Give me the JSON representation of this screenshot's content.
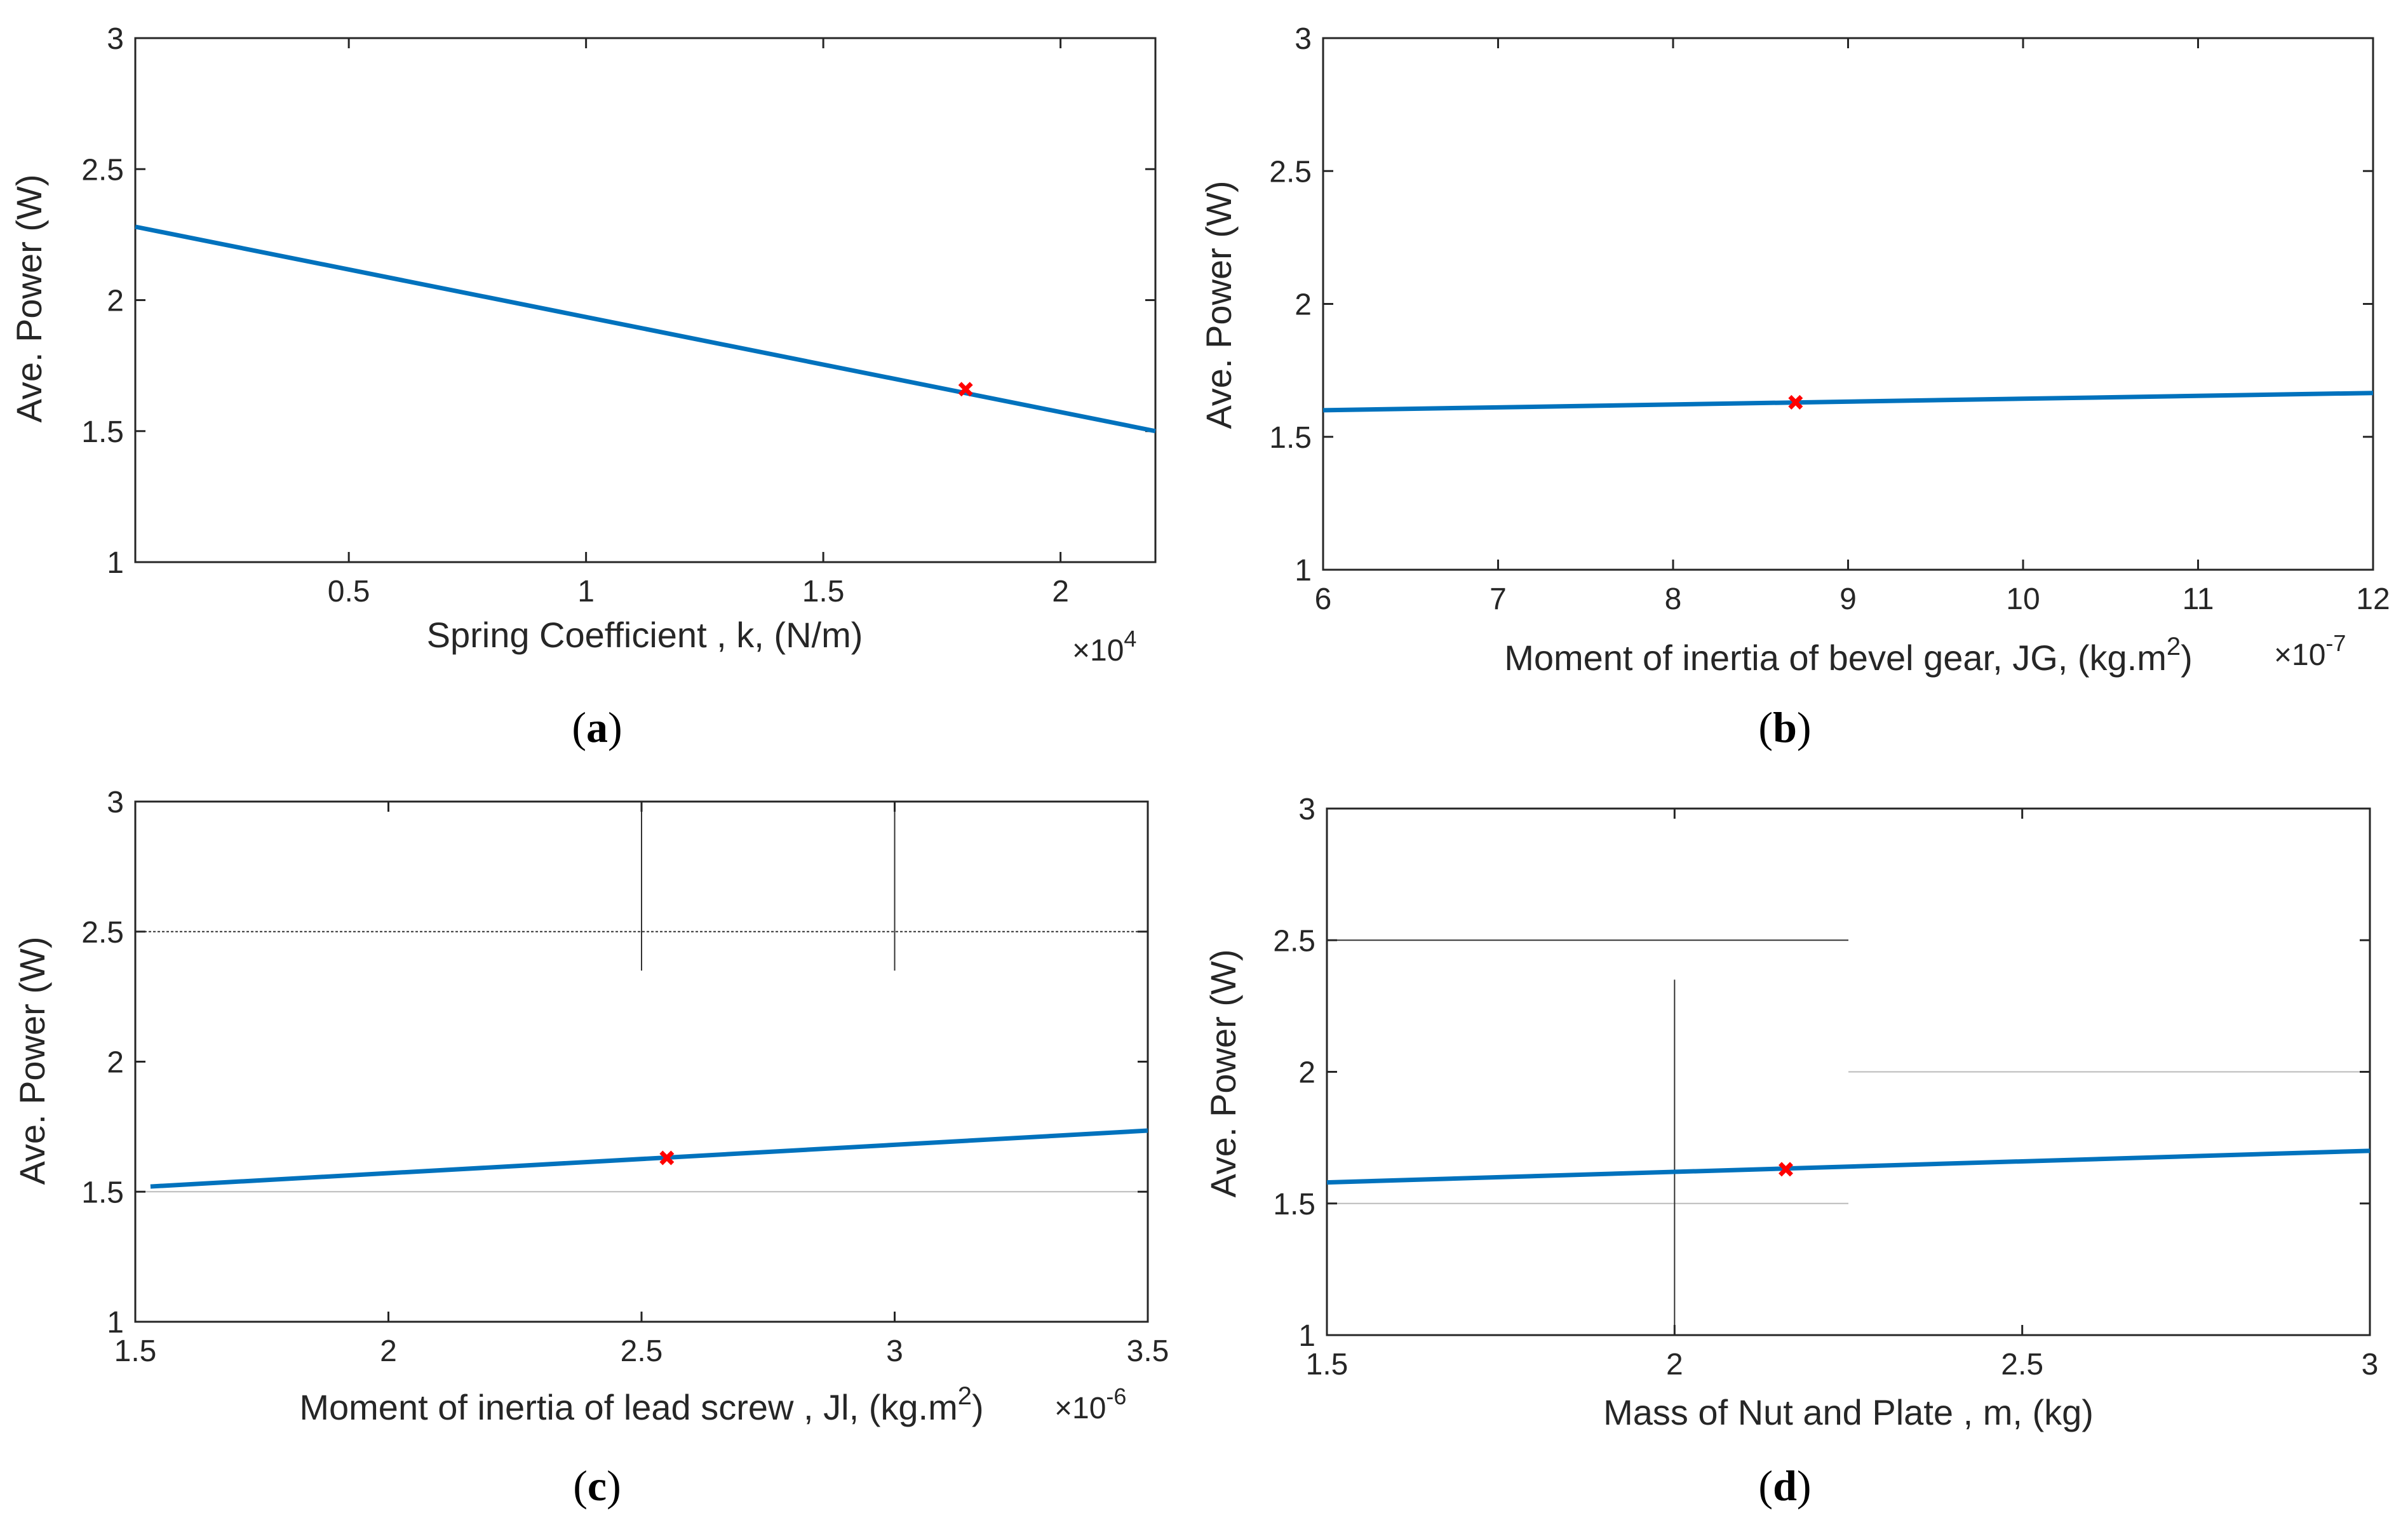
{
  "chart_data": [
    {
      "id": "a",
      "type": "line",
      "panel_label": "a",
      "xlabel": "Spring Coefficient , k, (N/m)",
      "ylabel": "Ave. Power (W)",
      "x_multiplier_base": "×10",
      "x_multiplier_exp": "4",
      "xlim": [
        0.05,
        2.2
      ],
      "ylim": [
        1,
        3
      ],
      "xticks": [
        0.5,
        1,
        1.5,
        2
      ],
      "xtick_labels": [
        "0.5",
        "1",
        "1.5",
        "2"
      ],
      "yticks": [
        1,
        1.5,
        2,
        2.5,
        3
      ],
      "ytick_labels": [
        "1",
        "1.5",
        "2",
        "2.5",
        "3"
      ],
      "series": [
        {
          "name": "Ave. Power",
          "x": [
            0.05,
            2.2
          ],
          "y": [
            2.28,
            1.5
          ],
          "color": "#0072BD"
        }
      ],
      "marker": {
        "x": 1.8,
        "y": 1.66,
        "color": "#FF0000"
      },
      "overlay_lines": []
    },
    {
      "id": "b",
      "type": "line",
      "panel_label": "b",
      "xlabel_main": "Moment of inertia of bevel gear, JG,  (kg.m",
      "xlabel_sup": "2",
      "xlabel_tail": ")",
      "ylabel": "Ave. Power (W)",
      "x_multiplier_base": "×10",
      "x_multiplier_exp": "-7",
      "xlim": [
        6,
        12
      ],
      "ylim": [
        1,
        3
      ],
      "xticks": [
        6,
        7,
        8,
        9,
        10,
        11,
        12
      ],
      "xtick_labels": [
        "6",
        "7",
        "8",
        "9",
        "10",
        "11",
        "12"
      ],
      "yticks": [
        1,
        1.5,
        2,
        2.5,
        3
      ],
      "ytick_labels": [
        "1",
        "1.5",
        "2",
        "2.5",
        "3"
      ],
      "series": [
        {
          "name": "Ave. Power",
          "x": [
            6,
            12
          ],
          "y": [
            1.6,
            1.665
          ],
          "color": "#0072BD"
        }
      ],
      "marker": {
        "x": 8.7,
        "y": 1.63,
        "color": "#FF0000"
      },
      "overlay_lines": []
    },
    {
      "id": "c",
      "type": "line",
      "panel_label": "c",
      "xlabel_main": "Moment of inertia of lead screw , Jl,  (kg.m",
      "xlabel_sup": "2",
      "xlabel_tail": ")",
      "ylabel": "Ave. Power (W)",
      "x_multiplier_base": "×10",
      "x_multiplier_exp": "-6",
      "xlim": [
        1.5,
        3.5
      ],
      "ylim": [
        1,
        3
      ],
      "xticks": [
        1.5,
        2,
        2.5,
        3,
        3.5
      ],
      "xtick_labels": [
        "1.5",
        "2",
        "2.5",
        "3",
        "3.5"
      ],
      "yticks": [
        1,
        1.5,
        2,
        2.5,
        3
      ],
      "ytick_labels": [
        "1",
        "1.5",
        "2",
        "2.5",
        "3"
      ],
      "series": [
        {
          "name": "Ave. Power",
          "x": [
            1.53,
            3.5
          ],
          "y": [
            1.52,
            1.735
          ],
          "color": "#0072BD"
        }
      ],
      "marker": {
        "x": 2.55,
        "y": 1.63,
        "color": "#FF0000"
      },
      "overlay_lines": [
        {
          "x1": 1.5,
          "y1": 2.5,
          "x2": 3.5,
          "y2": 2.5,
          "color": "#333333",
          "dash": true
        },
        {
          "x1": 1.5,
          "y1": 1.5,
          "x2": 3.5,
          "y2": 1.5,
          "color": "#bbbbbb",
          "dash": false
        },
        {
          "x1": 2.5,
          "y1": 3,
          "x2": 2.5,
          "y2": 2.35,
          "color": "#333333",
          "dash": false
        },
        {
          "x1": 3,
          "y1": 3,
          "x2": 3,
          "y2": 2.35,
          "color": "#333333",
          "dash": false
        }
      ]
    },
    {
      "id": "d",
      "type": "line",
      "panel_label": "d",
      "xlabel": "Mass of Nut and Plate  , m,  (kg)",
      "ylabel": "Ave. Power (W)",
      "xlim": [
        1.5,
        3
      ],
      "ylim": [
        1,
        3
      ],
      "xticks": [
        1.5,
        2,
        2.5,
        3
      ],
      "xtick_labels": [
        "1.5",
        "2",
        "2.5",
        "3"
      ],
      "yticks": [
        1,
        1.5,
        2,
        2.5,
        3
      ],
      "ytick_labels": [
        "1",
        "1.5",
        "2",
        "2.5",
        "3"
      ],
      "series": [
        {
          "name": "Ave. Power",
          "x": [
            1.5,
            3
          ],
          "y": [
            1.58,
            1.7
          ],
          "color": "#0072BD"
        }
      ],
      "marker": {
        "x": 2.16,
        "y": 1.63,
        "color": "#FF0000"
      },
      "overlay_lines": [
        {
          "x1": 1.5,
          "y1": 2.5,
          "x2": 2.25,
          "y2": 2.5,
          "color": "#333333",
          "dash": false
        },
        {
          "x1": 2.25,
          "y1": 2,
          "x2": 3,
          "y2": 2,
          "color": "#bbbbbb",
          "dash": false
        },
        {
          "x1": 1.5,
          "y1": 1.5,
          "x2": 2.25,
          "y2": 1.5,
          "color": "#bbbbbb",
          "dash": false
        },
        {
          "x1": 2,
          "y1": 1,
          "x2": 2,
          "y2": 2.35,
          "color": "#333333",
          "dash": false
        }
      ]
    }
  ]
}
